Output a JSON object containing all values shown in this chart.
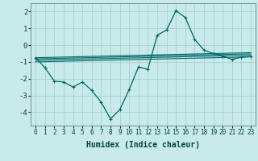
{
  "title": "",
  "xlabel": "Humidex (Indice chaleur)",
  "bg_color": "#c8eaea",
  "grid_color": "#a8d0d0",
  "line_color": "#006868",
  "xlim": [
    -0.5,
    23.5
  ],
  "ylim": [
    -4.8,
    2.5
  ],
  "yticks": [
    -4,
    -3,
    -2,
    -1,
    0,
    1,
    2
  ],
  "xticks": [
    0,
    1,
    2,
    3,
    4,
    5,
    6,
    7,
    8,
    9,
    10,
    11,
    12,
    13,
    14,
    15,
    16,
    17,
    18,
    19,
    20,
    21,
    22,
    23
  ],
  "main_x": [
    0,
    1,
    2,
    3,
    4,
    5,
    6,
    7,
    8,
    9,
    10,
    11,
    12,
    13,
    14,
    15,
    16,
    17,
    18,
    19,
    20,
    21,
    22,
    23
  ],
  "main_y": [
    -0.75,
    -1.35,
    -2.15,
    -2.2,
    -2.5,
    -2.2,
    -2.7,
    -3.4,
    -4.4,
    -3.85,
    -2.65,
    -1.3,
    -1.45,
    0.6,
    0.9,
    2.05,
    1.65,
    0.35,
    -0.3,
    -0.5,
    -0.65,
    -0.85,
    -0.72,
    -0.68
  ],
  "ref_lines": [
    {
      "x": [
        0,
        23
      ],
      "y": [
        -0.75,
        -0.45
      ]
    },
    {
      "x": [
        0,
        23
      ],
      "y": [
        -0.82,
        -0.52
      ]
    },
    {
      "x": [
        0,
        23
      ],
      "y": [
        -0.9,
        -0.6
      ]
    },
    {
      "x": [
        0,
        23
      ],
      "y": [
        -1.0,
        -0.7
      ]
    }
  ],
  "xlabel_fontsize": 7,
  "tick_fontsize": 6
}
